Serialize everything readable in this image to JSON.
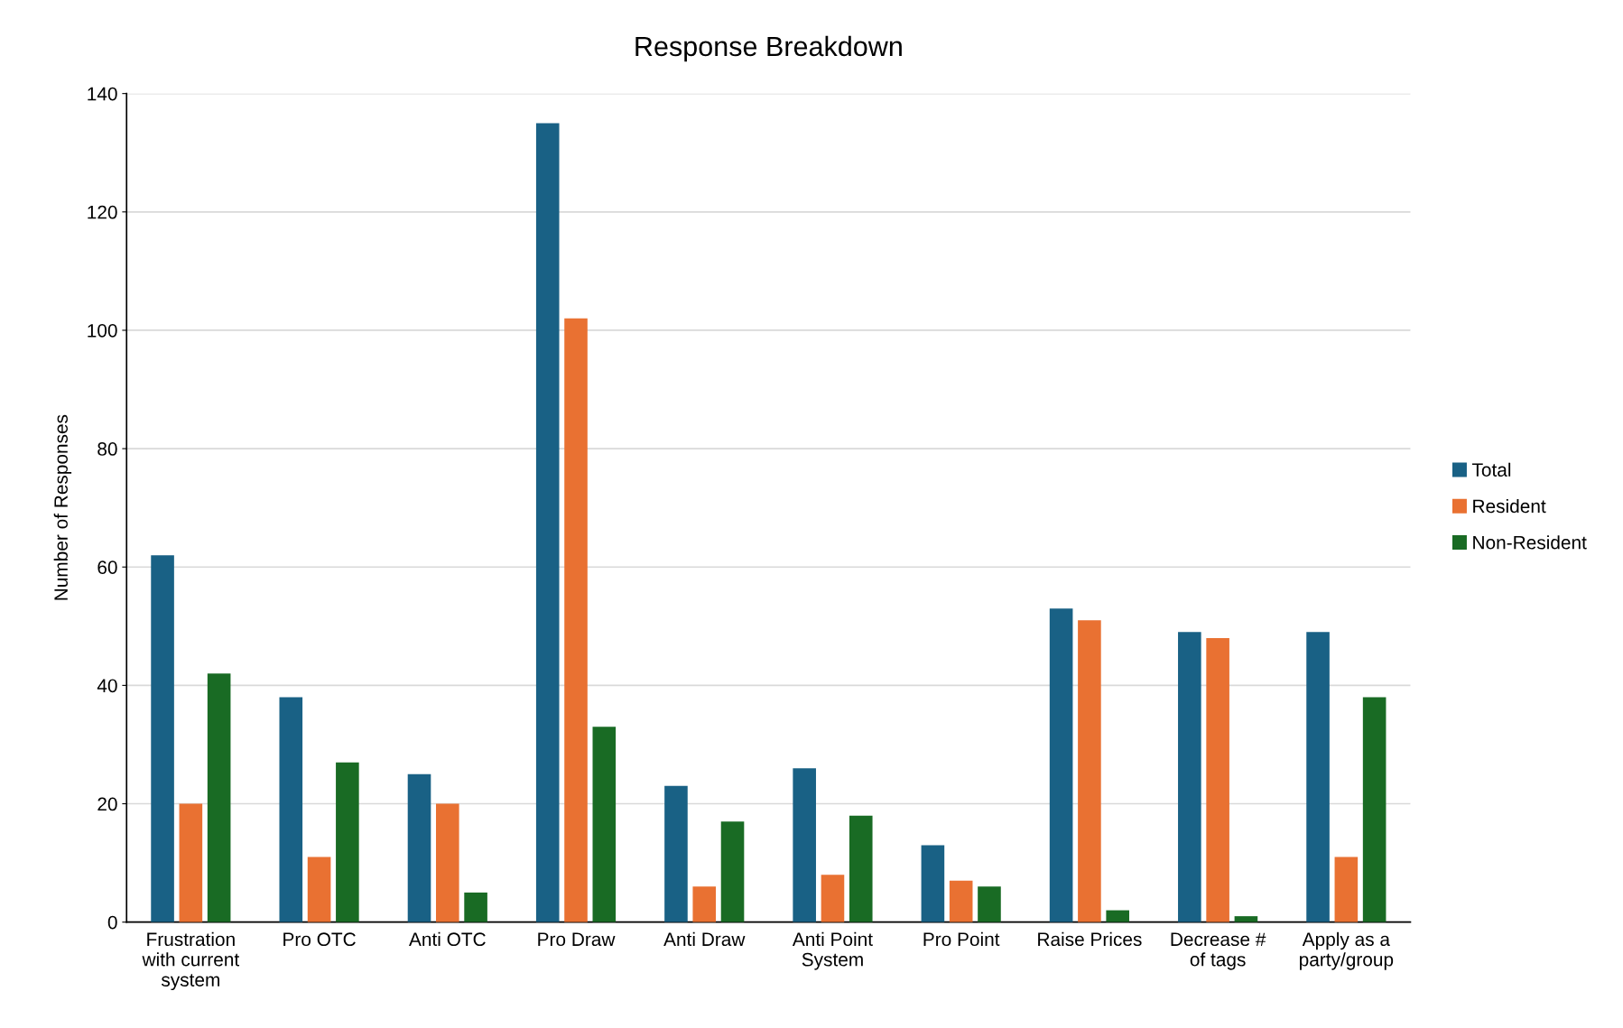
{
  "chart_data": {
    "type": "bar",
    "title": "Response Breakdown",
    "ylabel": "Number of Responses",
    "categories": [
      "Frustration with current system",
      "Pro OTC",
      "Anti OTC",
      "Pro Draw",
      "Anti Draw",
      "Anti Point System",
      "Pro Point",
      "Raise Prices",
      "Decrease # of tags",
      "Apply as a party/group"
    ],
    "series": [
      {
        "name": "Total",
        "color": "#196185",
        "values": [
          62,
          38,
          25,
          135,
          23,
          26,
          13,
          53,
          49,
          49
        ]
      },
      {
        "name": "Resident",
        "color": "#e97132",
        "values": [
          20,
          11,
          20,
          102,
          6,
          8,
          7,
          51,
          48,
          11
        ]
      },
      {
        "name": "Non-Resident",
        "color": "#196b24",
        "values": [
          42,
          27,
          5,
          33,
          17,
          18,
          6,
          2,
          1,
          38
        ]
      }
    ],
    "ylim": [
      0,
      140
    ],
    "yticks": [
      0,
      20,
      40,
      60,
      80,
      100,
      120,
      140
    ],
    "grid": "y",
    "legend": "right"
  }
}
